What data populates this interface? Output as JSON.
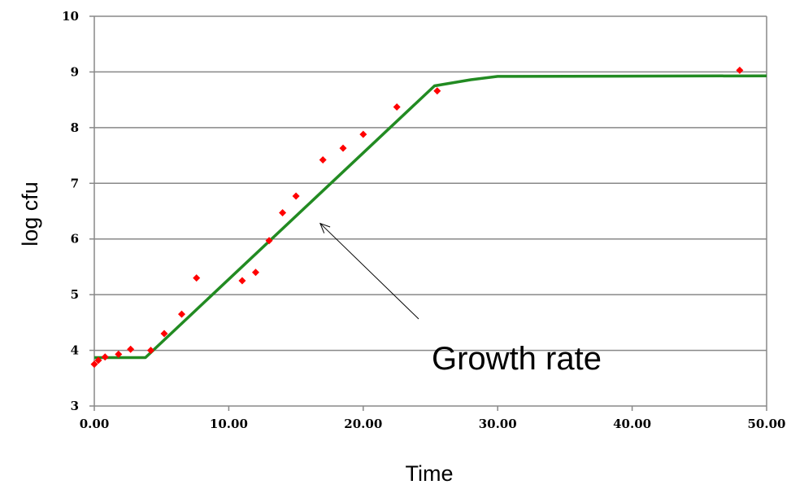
{
  "chart_data": {
    "type": "scatter",
    "title": "",
    "xlabel": "Time",
    "ylabel": "log cfu",
    "xlim": [
      0,
      50
    ],
    "ylim": [
      3,
      10
    ],
    "x_ticks": [
      "0.00",
      "10.00",
      "20.00",
      "30.00",
      "40.00",
      "50.00"
    ],
    "y_ticks": [
      "3",
      "4",
      "5",
      "6",
      "7",
      "8",
      "9",
      "10"
    ],
    "grid": "horizontal",
    "series": [
      {
        "type": "scatter",
        "color": "#ff0000",
        "points": [
          [
            0.0,
            3.75
          ],
          [
            0.3,
            3.82
          ],
          [
            0.8,
            3.88
          ],
          [
            1.8,
            3.93
          ],
          [
            2.7,
            4.02
          ],
          [
            4.2,
            4.0
          ],
          [
            5.2,
            4.3
          ],
          [
            6.5,
            4.65
          ],
          [
            7.6,
            5.3
          ],
          [
            11.0,
            5.25
          ],
          [
            12.0,
            5.4
          ],
          [
            13.0,
            5.97
          ],
          [
            14.0,
            6.47
          ],
          [
            15.0,
            6.77
          ],
          [
            17.0,
            7.42
          ],
          [
            18.5,
            7.63
          ],
          [
            20.0,
            7.88
          ],
          [
            22.5,
            8.37
          ],
          [
            25.5,
            8.66
          ],
          [
            48.0,
            9.03
          ]
        ]
      },
      {
        "type": "line",
        "color": "#228b22",
        "points": [
          [
            0.0,
            3.87
          ],
          [
            3.8,
            3.87
          ],
          [
            25.3,
            8.75
          ],
          [
            28.0,
            8.86
          ],
          [
            30.0,
            8.92
          ],
          [
            50.0,
            8.93
          ]
        ]
      }
    ],
    "annotations": [
      {
        "text": "Growth rate",
        "arrow_to": [
          16.8,
          6.28
        ]
      }
    ]
  }
}
